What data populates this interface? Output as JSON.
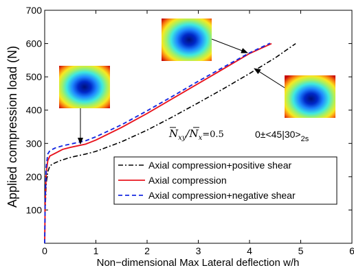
{
  "chart_data": {
    "type": "line",
    "title": "",
    "xlabel": "Non−dimensional Max Lateral deflection w/h",
    "ylabel": "Applied compression load (N)",
    "xlim": [
      0,
      6
    ],
    "ylim": [
      0,
      700
    ],
    "xticks": [
      "0",
      "1",
      "2",
      "3",
      "4",
      "5",
      "6"
    ],
    "yticks": [
      "100",
      "200",
      "300",
      "400",
      "500",
      "600",
      "700"
    ],
    "grid": false,
    "legend_position": "lower-right",
    "series": [
      {
        "name": "Axial compression+positive shear",
        "style": "dash-dot",
        "color": "#000000",
        "x": [
          0,
          0.01,
          0.03,
          0.06,
          0.1,
          0.15,
          0.3,
          0.5,
          0.8,
          1.0,
          1.5,
          2.0,
          2.5,
          3.0,
          3.5,
          4.0,
          4.5,
          4.9
        ],
        "y": [
          0,
          100,
          180,
          215,
          232,
          238,
          248,
          258,
          268,
          276,
          305,
          340,
          380,
          422,
          465,
          510,
          557,
          600
        ]
      },
      {
        "name": "Axial compression",
        "style": "solid",
        "color": "#e8141e",
        "x": [
          0,
          0.01,
          0.03,
          0.06,
          0.1,
          0.2,
          0.35,
          0.5,
          0.8,
          1.0,
          1.5,
          2.0,
          2.5,
          3.0,
          3.5,
          4.0,
          4.43
        ],
        "y": [
          0,
          120,
          210,
          248,
          262,
          270,
          282,
          288,
          298,
          310,
          348,
          390,
          435,
          480,
          525,
          570,
          600
        ]
      },
      {
        "name": "Axial compression+negative shear",
        "style": "dashed",
        "color": "#1428e0",
        "x": [
          0,
          0.01,
          0.03,
          0.06,
          0.1,
          0.2,
          0.35,
          0.5,
          0.8,
          1.0,
          1.5,
          2.0,
          2.5,
          3.0,
          3.5,
          4.0,
          4.4
        ],
        "y": [
          0,
          130,
          230,
          268,
          278,
          286,
          293,
          298,
          308,
          320,
          356,
          398,
          442,
          487,
          530,
          572,
          601
        ]
      }
    ],
    "annotations": {
      "ratio_base_left": "N",
      "ratio_sub_left": "xy",
      "ratio_slash": "/",
      "ratio_base_right": "N",
      "ratio_sub_right": "x",
      "ratio_value": "=0.5",
      "layup_main": "0±<45|30>",
      "layup_sub": "2s"
    }
  }
}
